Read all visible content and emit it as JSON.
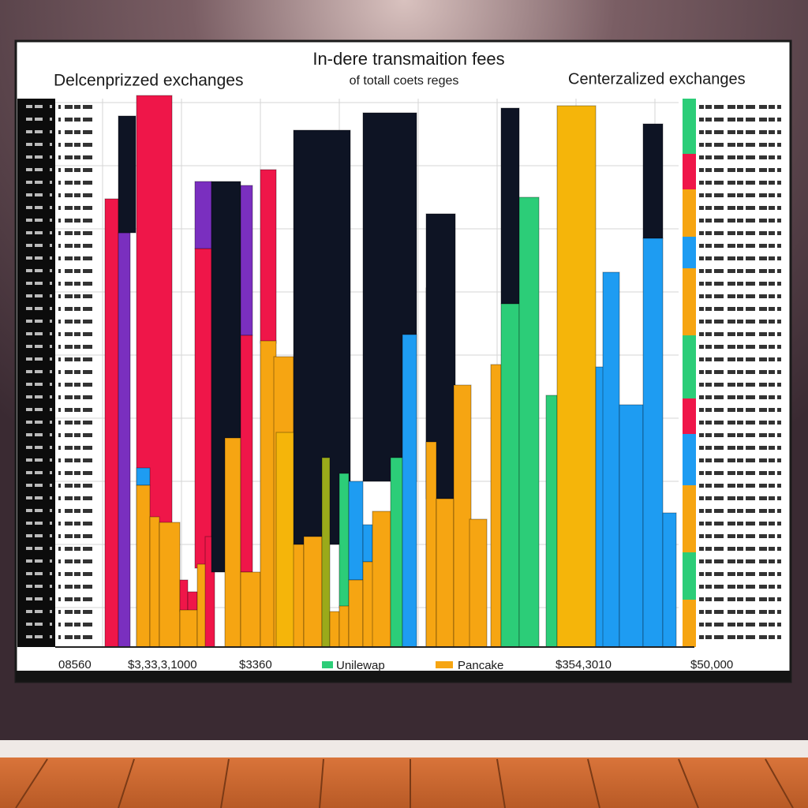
{
  "title": "In-dere transmaition fees",
  "subtitle": "of totall coets reges",
  "left_heading": "Delcenprizzed exchanges",
  "right_heading": "Centerzalized exchanges",
  "footer_labels": [
    "08560",
    "$3,33,3,1000",
    "$3360",
    "$354,3010",
    "$50,000"
  ],
  "legend": [
    "Unilewap",
    "Pancake"
  ]
}
